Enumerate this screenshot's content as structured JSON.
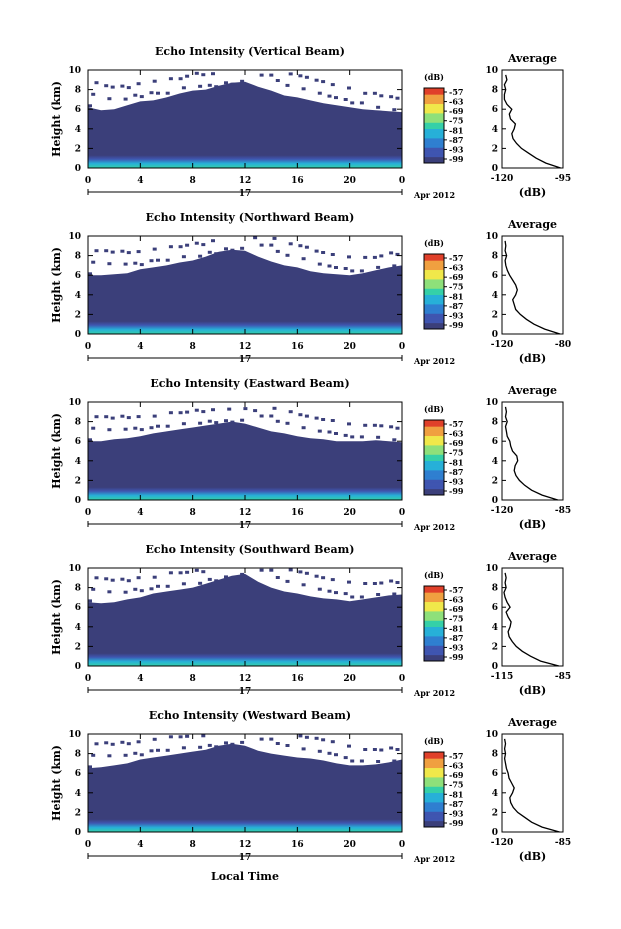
{
  "colors": {
    "background": "#ffffff",
    "echo_fill": "#3b3f7a",
    "colorscale": [
      "#3b3f7a",
      "#3f55b0",
      "#2f7fd0",
      "#27b0d8",
      "#35d0a8",
      "#8ee07a",
      "#f0e84a",
      "#f0a040",
      "#e0402a"
    ]
  },
  "chart_data": [
    {
      "type": "heatmap",
      "title": "Echo Intensity (Vertical Beam)",
      "ylabel": "Height (km)",
      "x_ticks": [
        "0",
        "4",
        "8",
        "12",
        "16",
        "20",
        "0"
      ],
      "y_ticks": [
        "0",
        "2",
        "4",
        "6",
        "8",
        "10"
      ],
      "xlim": [
        0,
        24
      ],
      "ylim": [
        0,
        10
      ],
      "date_day": "17",
      "date_label": "Apr 2012",
      "colorbar": {
        "unit": "(dB)",
        "ticks": [
          "-57",
          "-63",
          "-69",
          "-75",
          "-81",
          "-87",
          "-93",
          "-99"
        ]
      },
      "echo_top_km": [
        6.2,
        5.9,
        6.0,
        6.4,
        6.8,
        6.9,
        7.2,
        7.6,
        7.9,
        8.0,
        8.4,
        8.7,
        8.8,
        8.3,
        7.9,
        7.4,
        7.2,
        6.9,
        6.6,
        6.4,
        6.2,
        6.0,
        5.9,
        5.8,
        5.7
      ],
      "average": {
        "title": "Average",
        "xlabel": "(dB)",
        "x_ticks": [
          "-120",
          "-95"
        ],
        "xlim": [
          -120,
          -95
        ],
        "y_ticks": [
          "0",
          "2",
          "4",
          "6",
          "8",
          "10"
        ],
        "height_km": [
          0,
          0.5,
          1,
          1.5,
          2,
          2.5,
          3,
          3.5,
          4,
          4.5,
          5,
          5.5,
          6,
          6.5,
          7,
          7.5,
          8,
          8.5,
          9,
          9.5
        ],
        "db": [
          -96,
          -102,
          -106,
          -109,
          -112,
          -114,
          -115.5,
          -116,
          -115,
          -114.5,
          -116.5,
          -117,
          -116,
          -118,
          -119,
          -119,
          -118.5,
          -119,
          -118,
          -118.5
        ]
      }
    },
    {
      "type": "heatmap",
      "title": "Echo Intensity (Northward Beam)",
      "ylabel": "Height (km)",
      "x_ticks": [
        "0",
        "4",
        "8",
        "12",
        "16",
        "20",
        "0"
      ],
      "y_ticks": [
        "0",
        "2",
        "4",
        "6",
        "8",
        "10"
      ],
      "xlim": [
        0,
        24
      ],
      "ylim": [
        0,
        10
      ],
      "date_day": "17",
      "date_label": "Apr 2012",
      "colorbar": {
        "unit": "(dB)",
        "ticks": [
          "-57",
          "-63",
          "-69",
          "-75",
          "-81",
          "-87",
          "-93",
          "-99"
        ]
      },
      "echo_top_km": [
        6.0,
        6.0,
        6.1,
        6.2,
        6.6,
        6.8,
        7.0,
        7.3,
        7.5,
        7.9,
        8.4,
        8.6,
        8.5,
        7.9,
        7.4,
        7.0,
        6.8,
        6.4,
        6.2,
        6.1,
        6.0,
        6.2,
        6.5,
        6.8,
        7.0
      ],
      "average": {
        "title": "Average",
        "xlabel": "(dB)",
        "x_ticks": [
          "-120",
          "-80"
        ],
        "xlim": [
          -120,
          -80
        ],
        "y_ticks": [
          "0",
          "2",
          "4",
          "6",
          "8",
          "10"
        ],
        "height_km": [
          0,
          0.5,
          1,
          1.5,
          2,
          2.5,
          3,
          3.5,
          4,
          4.5,
          5,
          5.5,
          6,
          6.5,
          7,
          7.5,
          8,
          8.5,
          9,
          9.5
        ],
        "db": [
          -82,
          -92,
          -99,
          -104,
          -108,
          -111,
          -112,
          -113,
          -111,
          -110,
          -111,
          -113,
          -115,
          -116.5,
          -117.5,
          -118,
          -117,
          -118,
          -117.5,
          -118
        ]
      }
    },
    {
      "type": "heatmap",
      "title": "Echo Intensity (Eastward Beam)",
      "ylabel": "Height (km)",
      "x_ticks": [
        "0",
        "4",
        "8",
        "12",
        "16",
        "20",
        "0"
      ],
      "y_ticks": [
        "0",
        "2",
        "4",
        "6",
        "8",
        "10"
      ],
      "xlim": [
        0,
        24
      ],
      "ylim": [
        0,
        10
      ],
      "date_day": "17",
      "date_label": "Apr 2012",
      "colorbar": {
        "unit": "(dB)",
        "ticks": [
          "-57",
          "-63",
          "-69",
          "-75",
          "-81",
          "-87",
          "-93",
          "-99"
        ]
      },
      "echo_top_km": [
        6.0,
        6.0,
        6.2,
        6.3,
        6.5,
        6.8,
        7.0,
        7.2,
        7.4,
        7.6,
        7.8,
        8.0,
        7.8,
        7.4,
        7.0,
        6.8,
        6.5,
        6.3,
        6.2,
        6.0,
        6.0,
        6.0,
        6.1,
        6.0,
        5.9
      ],
      "average": {
        "title": "Average",
        "xlabel": "(dB)",
        "x_ticks": [
          "-120",
          "-85"
        ],
        "xlim": [
          -120,
          -85
        ],
        "y_ticks": [
          "0",
          "2",
          "4",
          "6",
          "8",
          "10"
        ],
        "height_km": [
          0,
          0.5,
          1,
          1.5,
          2,
          2.5,
          3,
          3.5,
          4,
          4.5,
          5,
          5.5,
          6,
          6.5,
          7,
          7.5,
          8,
          8.5,
          9,
          9.5
        ],
        "db": [
          -88,
          -97,
          -103,
          -107,
          -110,
          -112,
          -113,
          -112.5,
          -111,
          -111.5,
          -114,
          -115,
          -115.5,
          -117,
          -117.5,
          -118,
          -117,
          -118,
          -117.5,
          -118
        ]
      }
    },
    {
      "type": "heatmap",
      "title": "Echo Intensity (Southward Beam)",
      "ylabel": "Height (km)",
      "x_ticks": [
        "0",
        "4",
        "8",
        "12",
        "16",
        "20",
        "0"
      ],
      "y_ticks": [
        "0",
        "2",
        "4",
        "6",
        "8",
        "10"
      ],
      "xlim": [
        0,
        24
      ],
      "ylim": [
        0,
        10
      ],
      "date_day": "17",
      "date_label": "Apr 2012",
      "colorbar": {
        "unit": "(dB)",
        "ticks": [
          "-57",
          "-63",
          "-69",
          "-75",
          "-81",
          "-87",
          "-93",
          "-99"
        ]
      },
      "echo_top_km": [
        6.5,
        6.4,
        6.5,
        6.8,
        7.0,
        7.4,
        7.6,
        7.8,
        8.0,
        8.4,
        8.8,
        9.2,
        9.4,
        8.6,
        8.0,
        7.6,
        7.4,
        7.1,
        6.9,
        6.8,
        6.6,
        6.8,
        7.0,
        7.2,
        7.3
      ],
      "average": {
        "title": "Average",
        "xlabel": "(dB)",
        "x_ticks": [
          "-115",
          "-85"
        ],
        "xlim": [
          -115,
          -85
        ],
        "y_ticks": [
          "0",
          "2",
          "4",
          "6",
          "8",
          "10"
        ],
        "height_km": [
          0,
          0.5,
          1,
          1.5,
          2,
          2.5,
          3,
          3.5,
          4,
          4.5,
          5,
          5.5,
          6,
          6.5,
          7,
          7.5,
          8,
          8.5,
          9,
          9.5
        ],
        "db": [
          -87,
          -96,
          -101,
          -105,
          -108,
          -110,
          -111.5,
          -112,
          -111,
          -110.5,
          -112,
          -113,
          -111,
          -112.5,
          -113.5,
          -114,
          -113,
          -113.5,
          -113,
          -113.5
        ]
      }
    },
    {
      "type": "heatmap",
      "title": "Echo Intensity (Westward Beam)",
      "ylabel": "Height (km)",
      "x_ticks": [
        "0",
        "4",
        "8",
        "12",
        "16",
        "20",
        "0"
      ],
      "y_ticks": [
        "0",
        "2",
        "4",
        "6",
        "8",
        "10"
      ],
      "xlim": [
        0,
        24
      ],
      "ylim": [
        0,
        10
      ],
      "date_day": "17",
      "date_label": "Apr 2012",
      "xlabel": "Local Time",
      "colorbar": {
        "unit": "(dB)",
        "ticks": [
          "-57",
          "-63",
          "-69",
          "-75",
          "-81",
          "-87",
          "-93",
          "-99"
        ]
      },
      "echo_top_km": [
        6.5,
        6.6,
        6.8,
        7.0,
        7.4,
        7.6,
        7.8,
        8.0,
        8.2,
        8.4,
        8.8,
        9.0,
        8.8,
        8.3,
        8.0,
        7.8,
        7.6,
        7.5,
        7.3,
        7.0,
        6.8,
        6.8,
        6.9,
        7.1,
        7.4
      ],
      "average": {
        "title": "Average",
        "xlabel": "(dB)",
        "x_ticks": [
          "-120",
          "-85"
        ],
        "xlim": [
          -120,
          -85
        ],
        "y_ticks": [
          "0",
          "2",
          "4",
          "6",
          "8",
          "10"
        ],
        "height_km": [
          0,
          0.5,
          1,
          1.5,
          2,
          2.5,
          3,
          3.5,
          4,
          4.5,
          5,
          5.5,
          6,
          6.5,
          7,
          7.5,
          8,
          8.5,
          9,
          9.5
        ],
        "db": [
          -87,
          -97,
          -103,
          -107,
          -111,
          -113.5,
          -115,
          -115.5,
          -114,
          -113,
          -114.5,
          -116,
          -116.5,
          -117.5,
          -118,
          -118.5,
          -118,
          -118.5,
          -118,
          -118.5
        ]
      }
    }
  ]
}
